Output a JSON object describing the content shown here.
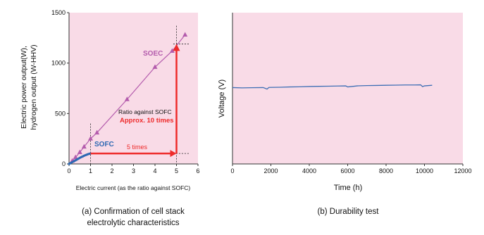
{
  "colors": {
    "plot_background": "#f9dbe7",
    "soec": "#b45cad",
    "sofc": "#2e69b3",
    "arrow": "#ee2a2a",
    "voltage_line": "#3f6fb5"
  },
  "chart_data": [
    {
      "type": "line",
      "title": "",
      "caption": "(a) Confirmation of cell stack electrolytic characteristics",
      "caption_lines": [
        "(a) Confirmation of cell stack",
        "electrolytic characteristics"
      ],
      "xlabel": "Electric current (as the ratio against SOFC)",
      "ylabel": "Electric power output(W), hydrogen output (W-HHV)",
      "ylabel_lines": [
        "Electric power output(W),",
        "hydrogen output (W-HHV)"
      ],
      "xlim": [
        0,
        6
      ],
      "ylim": [
        0,
        1500
      ],
      "x_ticks": [
        0,
        1,
        2,
        3,
        4,
        5,
        6
      ],
      "y_ticks": [
        0,
        500,
        1000,
        1500
      ],
      "grid": false,
      "series": [
        {
          "name": "SOEC",
          "marker": "triangle",
          "x": [
            0,
            0.15,
            0.3,
            0.5,
            0.7,
            1.0,
            1.3,
            2.7,
            4.0,
            4.8,
            5.4
          ],
          "y": [
            0,
            30,
            65,
            115,
            170,
            250,
            310,
            640,
            960,
            1120,
            1280
          ]
        },
        {
          "name": "SOFC",
          "marker": "dot",
          "x": [
            0,
            0.05,
            0.1,
            0.15,
            0.2,
            0.25,
            0.3,
            0.35,
            0.4,
            0.45,
            0.5,
            0.55,
            0.6,
            0.65,
            0.7,
            0.75,
            0.8,
            0.85,
            0.9,
            0.95,
            1.0
          ],
          "y": [
            0,
            6,
            12,
            18,
            24,
            30,
            36,
            42,
            48,
            54,
            60,
            66,
            71,
            76,
            81,
            86,
            90,
            94,
            98,
            101,
            104
          ]
        }
      ],
      "annotations": {
        "ratio_label": "Ratio against SOFC",
        "ratio_value": "Approx. 10 times",
        "current_label": "5 times"
      },
      "guides": {
        "current_arrow": {
          "from_x": 1,
          "to_x": 5,
          "y": 104
        },
        "output_arrow": {
          "x": 5,
          "from_y": 104,
          "to_y": 1190
        },
        "sofc_dashed_x": 1,
        "soec_dashed_x": 5,
        "soec_level_y": 1190
      }
    },
    {
      "type": "line",
      "title": "",
      "caption": "(b) Durability test",
      "xlabel": "Time (h)",
      "ylabel": "Voltage (V)",
      "xlim": [
        0,
        12000
      ],
      "x_ticks": [
        0,
        2000,
        4000,
        6000,
        8000,
        10000,
        12000
      ],
      "y_ticks_shown": false,
      "grid": false,
      "series": [
        {
          "x": [
            0,
            500,
            1000,
            1600,
            1800,
            1900,
            2500,
            3000,
            3500,
            4000,
            4500,
            5000,
            5500,
            5900,
            6000,
            6500,
            7000,
            7500,
            8000,
            8500,
            9000,
            9500,
            9800,
            9900,
            10000,
            10400
          ],
          "y": [
            0.505,
            0.503,
            0.504,
            0.505,
            0.495,
            0.506,
            0.507,
            0.509,
            0.51,
            0.512,
            0.513,
            0.514,
            0.515,
            0.516,
            0.509,
            0.516,
            0.518,
            0.519,
            0.52,
            0.521,
            0.522,
            0.522,
            0.523,
            0.511,
            0.516,
            0.52
          ]
        }
      ]
    }
  ]
}
